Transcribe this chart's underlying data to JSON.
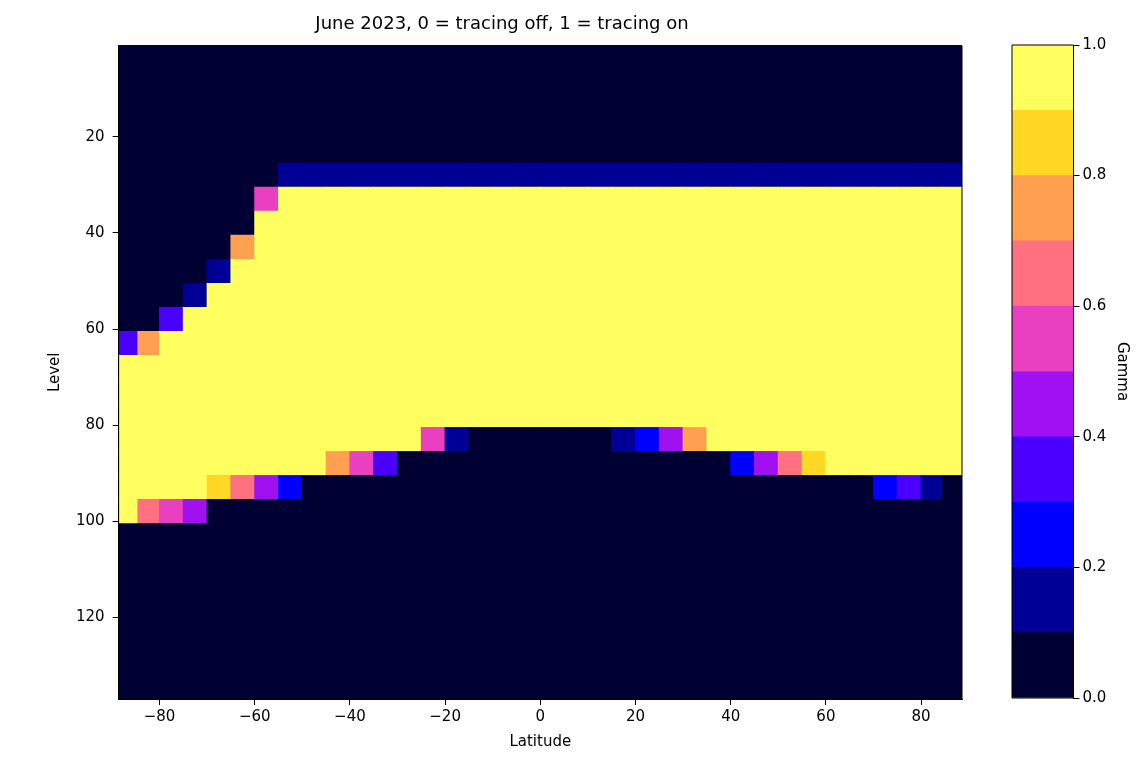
{
  "chart_data": {
    "type": "heatmap",
    "title": "June 2023, 0 = tracing off, 1 = tracing on",
    "xlabel": "Latitude",
    "ylabel": "Level",
    "clabel": "Gamma",
    "x": [
      -86.6,
      -82.5,
      -77.5,
      -72.5,
      -67.5,
      -62.5,
      -57.5,
      -52.5,
      -47.5,
      -42.5,
      -37.5,
      -32.5,
      -27.5,
      -22.5,
      -17.5,
      -12.5,
      -7.5,
      -2.5,
      2.5,
      7.5,
      12.5,
      17.5,
      22.5,
      27.5,
      32.5,
      37.5,
      42.5,
      47.5,
      52.5,
      57.5,
      62.5,
      67.5,
      72.5,
      77.5,
      82.5,
      86.6
    ],
    "y": [
      3.3,
      8,
      13,
      18,
      23,
      28,
      33,
      38,
      43,
      48,
      53,
      58,
      63,
      68,
      73,
      78,
      83,
      88,
      93,
      98,
      103,
      108,
      113,
      118,
      123,
      128,
      134
    ],
    "cells": [
      [
        0,
        0,
        0,
        0,
        0,
        0,
        0,
        0,
        0,
        0,
        0,
        0,
        0,
        0,
        0,
        0,
        0,
        0,
        0,
        0,
        0,
        0,
        0,
        0,
        0,
        0,
        0,
        0,
        0,
        0,
        0,
        0,
        0,
        0,
        0,
        0
      ],
      [
        0,
        0,
        0,
        0,
        0,
        0,
        0,
        0,
        0,
        0,
        0,
        0,
        0,
        0,
        0,
        0,
        0,
        0,
        0,
        0,
        0,
        0,
        0,
        0,
        0,
        0,
        0,
        0,
        0,
        0,
        0,
        0,
        0,
        0,
        0,
        0
      ],
      [
        0,
        0,
        0,
        0,
        0,
        0,
        0,
        0,
        0,
        0,
        0,
        0,
        0,
        0,
        0,
        0,
        0,
        0,
        0,
        0,
        0,
        0,
        0,
        0,
        0,
        0,
        0,
        0,
        0,
        0,
        0,
        0,
        0,
        0,
        0,
        0
      ],
      [
        0,
        0,
        0,
        0,
        0,
        0,
        0,
        0,
        0,
        0,
        0,
        0,
        0,
        0,
        0,
        0,
        0,
        0,
        0,
        0,
        0,
        0,
        0,
        0,
        0,
        0,
        0,
        0,
        0,
        0,
        0,
        0,
        0,
        0,
        0,
        0
      ],
      [
        0,
        0,
        0,
        0,
        0,
        0,
        0,
        0,
        0,
        0,
        0,
        0,
        0,
        0,
        0,
        0,
        0,
        0,
        0,
        0,
        0,
        0,
        0,
        0,
        0,
        0,
        0,
        0,
        0,
        0,
        0,
        0,
        0,
        0,
        0,
        0
      ],
      [
        0,
        0,
        0,
        0,
        0,
        0,
        0,
        0.15,
        0.15,
        0.15,
        0.15,
        0.15,
        0.15,
        0.15,
        0.15,
        0.15,
        0.15,
        0.15,
        0.15,
        0.15,
        0.15,
        0.15,
        0.15,
        0.15,
        0.15,
        0.15,
        0.15,
        0.15,
        0.15,
        0.15,
        0.15,
        0.15,
        0.15,
        0.15,
        0.15,
        0.15
      ],
      [
        0,
        0,
        0,
        0,
        0,
        0,
        0.55,
        1,
        1,
        1,
        1,
        1,
        1,
        1,
        1,
        1,
        1,
        1,
        1,
        1,
        1,
        1,
        1,
        1,
        1,
        1,
        1,
        1,
        1,
        1,
        1,
        1,
        1,
        1,
        1,
        1
      ],
      [
        0,
        0,
        0,
        0,
        0,
        0,
        1,
        1,
        1,
        1,
        1,
        1,
        1,
        1,
        1,
        1,
        1,
        1,
        1,
        1,
        1,
        1,
        1,
        1,
        1,
        1,
        1,
        1,
        1,
        1,
        1,
        1,
        1,
        1,
        1,
        1
      ],
      [
        0,
        0,
        0,
        0,
        0,
        0.75,
        1,
        1,
        1,
        1,
        1,
        1,
        1,
        1,
        1,
        1,
        1,
        1,
        1,
        1,
        1,
        1,
        1,
        1,
        1,
        1,
        1,
        1,
        1,
        1,
        1,
        1,
        1,
        1,
        1,
        1
      ],
      [
        0,
        0,
        0,
        0,
        0.15,
        1,
        1,
        1,
        1,
        1,
        1,
        1,
        1,
        1,
        1,
        1,
        1,
        1,
        1,
        1,
        1,
        1,
        1,
        1,
        1,
        1,
        1,
        1,
        1,
        1,
        1,
        1,
        1,
        1,
        1,
        1
      ],
      [
        0,
        0,
        0,
        0.15,
        1,
        1,
        1,
        1,
        1,
        1,
        1,
        1,
        1,
        1,
        1,
        1,
        1,
        1,
        1,
        1,
        1,
        1,
        1,
        1,
        1,
        1,
        1,
        1,
        1,
        1,
        1,
        1,
        1,
        1,
        1,
        1
      ],
      [
        0,
        0,
        0.35,
        1,
        1,
        1,
        1,
        1,
        1,
        1,
        1,
        1,
        1,
        1,
        1,
        1,
        1,
        1,
        1,
        1,
        1,
        1,
        1,
        1,
        1,
        1,
        1,
        1,
        1,
        1,
        1,
        1,
        1,
        1,
        1,
        1
      ],
      [
        0.35,
        0.75,
        1,
        1,
        1,
        1,
        1,
        1,
        1,
        1,
        1,
        1,
        1,
        1,
        1,
        1,
        1,
        1,
        1,
        1,
        1,
        1,
        1,
        1,
        1,
        1,
        1,
        1,
        1,
        1,
        1,
        1,
        1,
        1,
        1,
        1
      ],
      [
        1,
        1,
        1,
        1,
        1,
        1,
        1,
        1,
        1,
        1,
        1,
        1,
        1,
        1,
        1,
        1,
        1,
        1,
        1,
        1,
        1,
        1,
        1,
        1,
        1,
        1,
        1,
        1,
        1,
        1,
        1,
        1,
        1,
        1,
        1,
        1
      ],
      [
        1,
        1,
        1,
        1,
        1,
        1,
        1,
        1,
        1,
        1,
        1,
        1,
        1,
        1,
        1,
        1,
        1,
        1,
        1,
        1,
        1,
        1,
        1,
        1,
        1,
        1,
        1,
        1,
        1,
        1,
        1,
        1,
        1,
        1,
        1,
        1
      ],
      [
        1,
        1,
        1,
        1,
        1,
        1,
        1,
        1,
        1,
        1,
        1,
        1,
        1,
        1,
        1,
        1,
        1,
        1,
        1,
        1,
        1,
        1,
        1,
        1,
        1,
        1,
        1,
        1,
        1,
        1,
        1,
        1,
        1,
        1,
        1,
        1
      ],
      [
        1,
        1,
        1,
        1,
        1,
        1,
        1,
        1,
        1,
        1,
        1,
        1,
        1,
        0.55,
        0.15,
        0,
        0,
        0,
        0,
        0,
        0,
        0.15,
        0.25,
        0.45,
        0.75,
        1,
        1,
        1,
        1,
        1,
        1,
        1,
        1,
        1,
        1,
        1
      ],
      [
        1,
        1,
        1,
        1,
        1,
        1,
        1,
        1,
        1,
        0.75,
        0.55,
        0.35,
        0,
        0,
        0,
        0,
        0,
        0,
        0,
        0,
        0,
        0,
        0,
        0,
        0,
        0,
        0.25,
        0.45,
        0.65,
        0.85,
        0.95,
        1,
        1,
        1,
        1,
        0.95
      ],
      [
        1,
        1,
        1,
        1,
        0.85,
        0.65,
        0.45,
        0.25,
        0,
        0,
        0,
        0,
        0,
        0,
        0,
        0,
        0,
        0,
        0,
        0,
        0,
        0,
        0,
        0,
        0,
        0,
        0,
        0,
        0,
        0,
        0,
        0,
        0.25,
        0.35,
        0.15,
        0
      ],
      [
        1,
        0.65,
        0.55,
        0.45,
        0,
        0,
        0,
        0,
        0,
        0,
        0,
        0,
        0,
        0,
        0,
        0,
        0,
        0,
        0,
        0,
        0,
        0,
        0,
        0,
        0,
        0,
        0,
        0,
        0,
        0,
        0,
        0,
        0,
        0,
        0,
        0
      ],
      [
        0,
        0,
        0,
        0,
        0,
        0,
        0,
        0,
        0,
        0,
        0,
        0,
        0,
        0,
        0,
        0,
        0,
        0,
        0,
        0,
        0,
        0,
        0,
        0,
        0,
        0,
        0,
        0,
        0,
        0,
        0,
        0,
        0,
        0,
        0,
        0
      ],
      [
        0,
        0,
        0,
        0,
        0,
        0,
        0,
        0,
        0,
        0,
        0,
        0,
        0,
        0,
        0,
        0,
        0,
        0,
        0,
        0,
        0,
        0,
        0,
        0,
        0,
        0,
        0,
        0,
        0,
        0,
        0,
        0,
        0,
        0,
        0,
        0
      ],
      [
        0,
        0,
        0,
        0,
        0,
        0,
        0,
        0,
        0,
        0,
        0,
        0,
        0,
        0,
        0,
        0,
        0,
        0,
        0,
        0,
        0,
        0,
        0,
        0,
        0,
        0,
        0,
        0,
        0,
        0,
        0,
        0,
        0,
        0,
        0,
        0
      ],
      [
        0,
        0,
        0,
        0,
        0,
        0,
        0,
        0,
        0,
        0,
        0,
        0,
        0,
        0,
        0,
        0,
        0,
        0,
        0,
        0,
        0,
        0,
        0,
        0,
        0,
        0,
        0,
        0,
        0,
        0,
        0,
        0,
        0,
        0,
        0,
        0
      ],
      [
        0,
        0,
        0,
        0,
        0,
        0,
        0,
        0,
        0,
        0,
        0,
        0,
        0,
        0,
        0,
        0,
        0,
        0,
        0,
        0,
        0,
        0,
        0,
        0,
        0,
        0,
        0,
        0,
        0,
        0,
        0,
        0,
        0,
        0,
        0,
        0
      ],
      [
        0,
        0,
        0,
        0,
        0,
        0,
        0,
        0,
        0,
        0,
        0,
        0,
        0,
        0,
        0,
        0,
        0,
        0,
        0,
        0,
        0,
        0,
        0,
        0,
        0,
        0,
        0,
        0,
        0,
        0,
        0,
        0,
        0,
        0,
        0,
        0
      ],
      [
        0,
        0,
        0,
        0,
        0,
        0,
        0,
        0,
        0,
        0,
        0,
        0,
        0,
        0,
        0,
        0,
        0,
        0,
        0,
        0,
        0,
        0,
        0,
        0,
        0,
        0,
        0,
        0,
        0,
        0,
        0,
        0,
        0,
        0,
        0,
        0
      ]
    ],
    "colors": [
      "#000033",
      "#000096",
      "#0000ff",
      "#4a00ff",
      "#a010f0",
      "#e840c0",
      "#ff7080",
      "#ffa050",
      "#ffd826",
      "#ffff60"
    ],
    "clim": [
      0,
      1
    ],
    "cticks": [
      {
        "value": 0,
        "label": "0.0"
      },
      0.2,
      0.4,
      0.6,
      0.8,
      {
        "value": 1,
        "label": "1.0"
      }
    ],
    "xlim": [
      -88.6,
      88.6
    ],
    "xticks": [
      -80,
      -60,
      -40,
      -20,
      0,
      20,
      40,
      60,
      80
    ],
    "ylim": [
      137,
      1
    ],
    "yticks": [
      20,
      40,
      60,
      80,
      100,
      120
    ]
  }
}
